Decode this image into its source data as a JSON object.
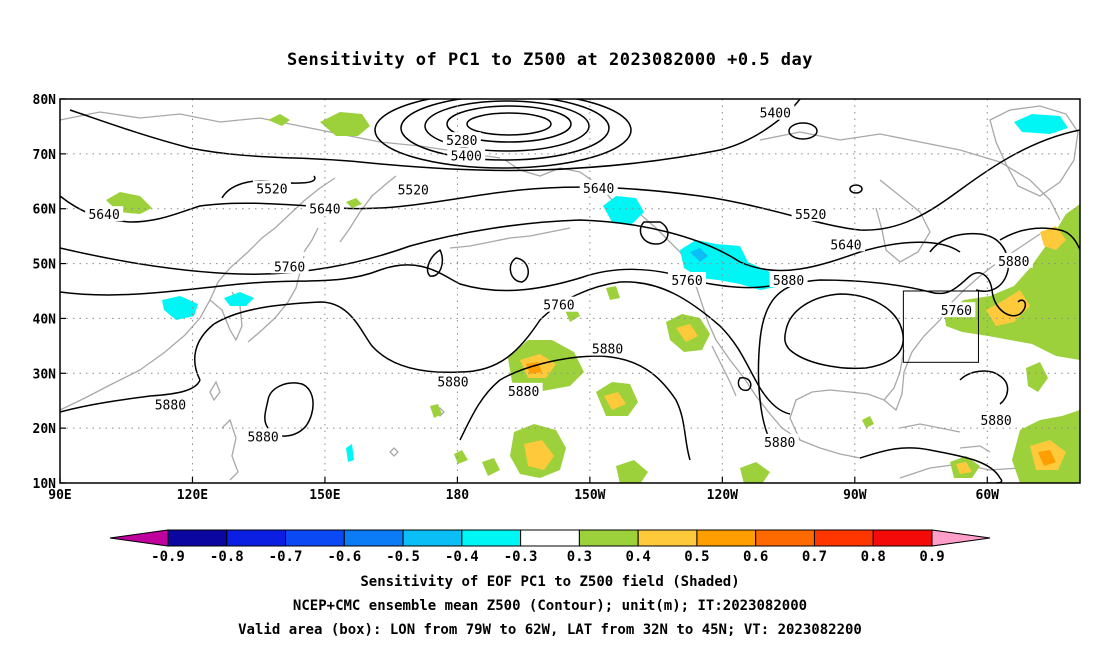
{
  "title": "Sensitivity of PC1 to Z500 at 2023082000 +0.5 day",
  "map": {
    "lat_labels": [
      "80N",
      "70N",
      "60N",
      "50N",
      "40N",
      "30N",
      "20N",
      "10N"
    ],
    "lon_labels": [
      "90E",
      "120E",
      "150E",
      "180",
      "150W",
      "120W",
      "90W",
      "60W"
    ],
    "lon_range": [
      90,
      321
    ],
    "lat_range": [
      10,
      80
    ],
    "valid_box": {
      "lon_west": -79,
      "lon_east": -62,
      "lat_south": 32,
      "lat_north": 45
    },
    "contour_labels": [
      {
        "text": "5280",
        "lon": 181,
        "lat": 72.5
      },
      {
        "text": "5400",
        "lon": 182,
        "lat": 69.7
      },
      {
        "text": "5400",
        "lon": 252,
        "lat": 77.5
      },
      {
        "text": "5520",
        "lon": 138,
        "lat": 63.7
      },
      {
        "text": "5520",
        "lon": 170,
        "lat": 63.5
      },
      {
        "text": "5520",
        "lon": 260,
        "lat": 59
      },
      {
        "text": "5640",
        "lon": 100,
        "lat": 59
      },
      {
        "text": "5640",
        "lon": 150,
        "lat": 60
      },
      {
        "text": "5640",
        "lon": 212,
        "lat": 63.8
      },
      {
        "text": "5640",
        "lon": 268,
        "lat": 53.5
      },
      {
        "text": "5760",
        "lon": 142,
        "lat": 49.5
      },
      {
        "text": "5760",
        "lon": 203,
        "lat": 42.5
      },
      {
        "text": "5760",
        "lon": 232,
        "lat": 47
      },
      {
        "text": "5760",
        "lon": 293,
        "lat": 41.5
      },
      {
        "text": "5880",
        "lon": 255,
        "lat": 47
      },
      {
        "text": "5880",
        "lon": 306,
        "lat": 50.5
      },
      {
        "text": "5880",
        "lon": 214,
        "lat": 34.5
      },
      {
        "text": "5880",
        "lon": 179,
        "lat": 28.5
      },
      {
        "text": "5880",
        "lon": 195,
        "lat": 26.8
      },
      {
        "text": "5880",
        "lon": 115,
        "lat": 24.3
      },
      {
        "text": "5880",
        "lon": 136,
        "lat": 18.5
      },
      {
        "text": "5880",
        "lon": 253,
        "lat": 17.5
      },
      {
        "text": "5880",
        "lon": 302,
        "lat": 21.5
      }
    ]
  },
  "colorbar": {
    "labels": [
      "-0.9",
      "-0.8",
      "-0.7",
      "-0.6",
      "-0.5",
      "-0.4",
      "-0.3",
      "0.3",
      "0.4",
      "0.5",
      "0.6",
      "0.7",
      "0.8",
      "0.9"
    ],
    "colors": [
      "#0b06a0",
      "#0b1fe3",
      "#0b49f5",
      "#0b7cf5",
      "#0bbef5",
      "#00f5f5",
      "#ffffff",
      "#9cd13c",
      "#ffc93c",
      "#ff9e00",
      "#ff6a00",
      "#ff3600",
      "#f50a0a"
    ],
    "low_color": "#c0009c",
    "high_color": "#ff9ec8"
  },
  "captions": {
    "line1": "Sensitivity of EOF PC1 to Z500 field (Shaded)",
    "line2": "NCEP+CMC ensemble mean Z500 (Contour); unit(m); IT:2023082000",
    "line3": "Valid area (box): LON from 79W to 62W, LAT from 32N to 45N; VT: 2023082200"
  }
}
